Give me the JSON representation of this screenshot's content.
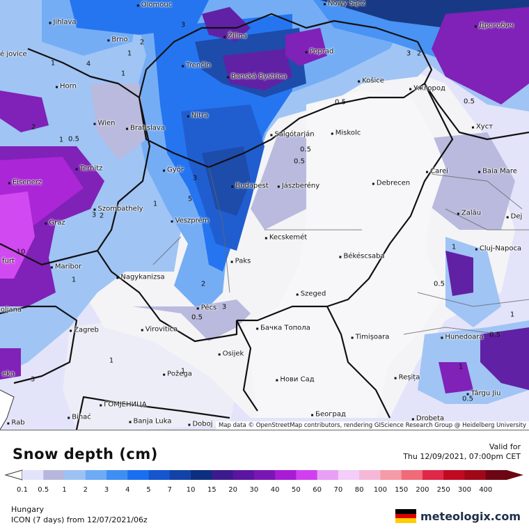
{
  "legend": {
    "title": "Snow depth (cm)",
    "valid_label": "Valid for",
    "valid_time": "Thu 12/09/2021, 07:00pm CET",
    "region": "Hungary",
    "model_run": "ICON (7 days) from 12/07/2021/06z",
    "brand": "meteologix.com",
    "flag_colors": [
      "#000000",
      "#dd0000",
      "#ffce00"
    ],
    "scale": [
      {
        "label": "0.1",
        "color": "#e3e3fb"
      },
      {
        "label": "0.5",
        "color": "#b7b7dd"
      },
      {
        "label": "1",
        "color": "#9cc2f4"
      },
      {
        "label": "2",
        "color": "#6faaf5"
      },
      {
        "label": "3",
        "color": "#3f8ef3"
      },
      {
        "label": "4",
        "color": "#1a6ff0"
      },
      {
        "label": "5",
        "color": "#1556cf"
      },
      {
        "label": "7",
        "color": "#1244a8"
      },
      {
        "label": "10",
        "color": "#0d2f80"
      },
      {
        "label": "15",
        "color": "#3d1b8c"
      },
      {
        "label": "20",
        "color": "#5a16a0"
      },
      {
        "label": "30",
        "color": "#7a16b5"
      },
      {
        "label": "40",
        "color": "#a81cd6"
      },
      {
        "label": "50",
        "color": "#d040f0"
      },
      {
        "label": "60",
        "color": "#e8a0f5"
      },
      {
        "label": "70",
        "color": "#f2cef8"
      },
      {
        "label": "80",
        "color": "#f5b8d8"
      },
      {
        "label": "100",
        "color": "#f59aa8"
      },
      {
        "label": "150",
        "color": "#f06a7a"
      },
      {
        "label": "200",
        "color": "#e0284a"
      },
      {
        "label": "250",
        "color": "#c00a22"
      },
      {
        "label": "300",
        "color": "#a0081a"
      },
      {
        "label": "400",
        "color": "#6c0614"
      }
    ]
  },
  "map": {
    "attribution": "Map data © OpenStreetMap contributors, rendering GIScience Research Group @ Heidelberg University",
    "cities": [
      {
        "name": "Olomouc"
      },
      {
        "name": "Nowy Sącz"
      },
      {
        "name": "Jihlava"
      },
      {
        "name": "Brno"
      },
      {
        "name": "Žilina"
      },
      {
        "name": "Poprad"
      },
      {
        "name": "Дрогобич"
      },
      {
        "name": "ské jovice"
      },
      {
        "name": "Trenčín"
      },
      {
        "name": "Banská Bystrica"
      },
      {
        "name": "Horn"
      },
      {
        "name": "Košice"
      },
      {
        "name": "Ужгород"
      },
      {
        "name": "Nitra"
      },
      {
        "name": "Wien"
      },
      {
        "name": "Bratislava"
      },
      {
        "name": "Salgótarján"
      },
      {
        "name": "Miskolc"
      },
      {
        "name": "Хуст"
      },
      {
        "name": "Ternitz"
      },
      {
        "name": "Győr"
      },
      {
        "name": "Carei"
      },
      {
        "name": "Baia Mare"
      },
      {
        "name": "Eisenerz"
      },
      {
        "name": "Budapest"
      },
      {
        "name": "Jászberény"
      },
      {
        "name": "Debrecen"
      },
      {
        "name": "Szombathely"
      },
      {
        "name": "Zalău"
      },
      {
        "name": "Graz"
      },
      {
        "name": "Veszprém"
      },
      {
        "name": "Dej"
      },
      {
        "name": "Kecskemét"
      },
      {
        "name": "Cluj-Napoca"
      },
      {
        "name": "furt"
      },
      {
        "name": "Maribor"
      },
      {
        "name": "Paks"
      },
      {
        "name": "Békéscsaba"
      },
      {
        "name": "Nagykanizsa"
      },
      {
        "name": "Szeged"
      },
      {
        "name": "oljana"
      },
      {
        "name": "Pécs"
      },
      {
        "name": "Zagreb"
      },
      {
        "name": "Virovitica"
      },
      {
        "name": "Бачка Топола"
      },
      {
        "name": "Timișoara"
      },
      {
        "name": "Hunedoara"
      },
      {
        "name": "Osijek"
      },
      {
        "name": "Požega"
      },
      {
        "name": "Нови Сад"
      },
      {
        "name": "Reșița"
      },
      {
        "name": "Târgu Jiu"
      },
      {
        "name": "ГОМЈЕНИЦА"
      },
      {
        "name": "Bihać"
      },
      {
        "name": "Banja Luka"
      },
      {
        "name": "Doboj"
      },
      {
        "name": "Београд"
      },
      {
        "name": "Drobeta"
      },
      {
        "name": "Rab"
      },
      {
        "name": "eka"
      }
    ],
    "contour_labels": [
      "2",
      "3",
      "4",
      "1",
      "1",
      "3",
      "2",
      "1",
      "0.5",
      "0.5",
      "0.5",
      "0.5",
      "1",
      "3",
      "5",
      "2",
      "3",
      "0.5",
      "1",
      "2",
      "1",
      "1",
      "0.5",
      "0.5",
      "1",
      "1",
      "0.5",
      "10",
      "3",
      "2",
      "1",
      "0.5",
      "1",
      "3"
    ]
  }
}
